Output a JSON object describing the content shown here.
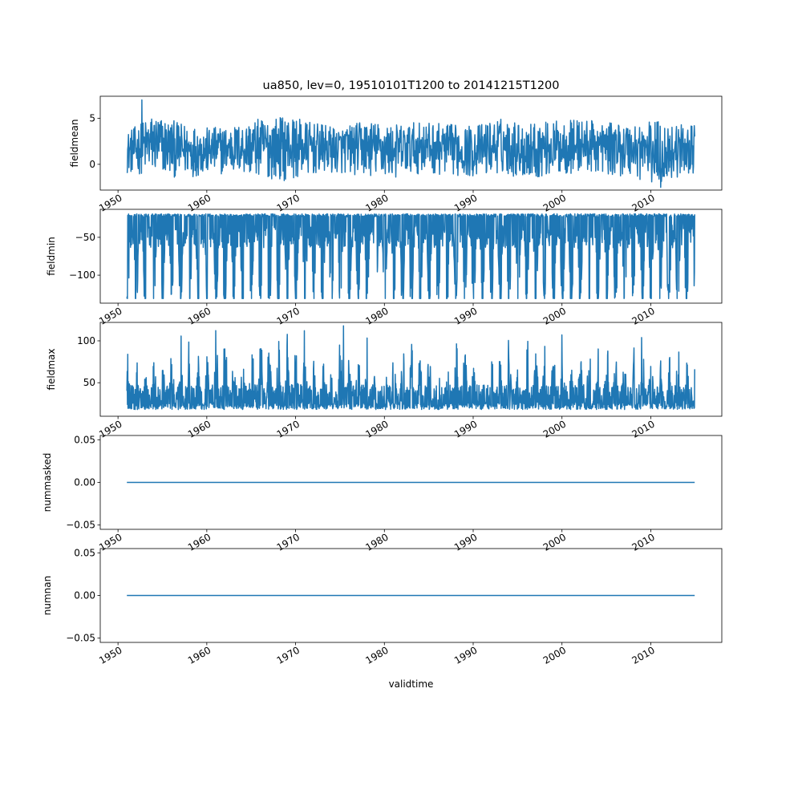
{
  "figure": {
    "title": "ua850, lev=0, 19510101T1200 to 20141215T1200",
    "xlabel": "validtime"
  },
  "chart_data": [
    {
      "type": "line",
      "ylabel": "fieldmean",
      "line_color": "#1f77b4",
      "xlim": [
        1948.0,
        2018.0
      ],
      "ylim": [
        -2.8,
        7.4
      ],
      "yticks": [
        0,
        5
      ],
      "ytick_labels": [
        "0",
        "5"
      ],
      "xticks": [
        1950,
        1960,
        1970,
        1980,
        1990,
        2000,
        2010
      ],
      "xtick_labels": [
        "1950",
        "1960",
        "1970",
        "1980",
        "1990",
        "2000",
        "2010"
      ],
      "x_range": [
        1951.0,
        2014.95
      ],
      "envelope_x": [
        1951,
        1954,
        1957,
        1960,
        1963,
        1966,
        1969,
        1972,
        1975,
        1978,
        1981,
        1984,
        1987,
        1990,
        1993,
        1996,
        1999,
        2002,
        2005,
        2008,
        2011,
        2014
      ],
      "envelope_low": [
        -1.0,
        -1.2,
        -1.5,
        -1.2,
        -1.0,
        -1.5,
        -1.8,
        -1.2,
        -1.0,
        -1.4,
        -1.6,
        -1.0,
        -1.2,
        -1.4,
        -1.0,
        -1.6,
        -1.3,
        -1.0,
        -1.1,
        -1.5,
        -2.5,
        -1.0
      ],
      "envelope_high": [
        3.5,
        5.5,
        4.5,
        4.0,
        4.2,
        5.0,
        5.3,
        4.5,
        4.0,
        4.8,
        4.3,
        4.6,
        4.4,
        4.2,
        5.0,
        4.5,
        4.7,
        5.0,
        4.5,
        4.6,
        4.8,
        4.2
      ],
      "peaks": [
        {
          "x": 1952.7,
          "y": 7.0
        },
        {
          "x": 2011.1,
          "y": -2.5
        }
      ]
    },
    {
      "type": "line",
      "ylabel": "fieldmin",
      "line_color": "#1f77b4",
      "xlim": [
        1948.0,
        2018.0
      ],
      "ylim": [
        -137,
        -13
      ],
      "yticks": [
        -50,
        -100
      ],
      "ytick_labels": [
        "−50",
        "−100"
      ],
      "xticks": [
        1950,
        1960,
        1970,
        1980,
        1990,
        2000,
        2010
      ],
      "xtick_labels": [
        "1950",
        "1960",
        "1970",
        "1980",
        "1990",
        "2000",
        "2010"
      ],
      "x_range": [
        1951.0,
        2014.95
      ],
      "upper_level": -19,
      "lower_level": -131,
      "seasonal_minimum_per_year": "approx. −110 to −131"
    },
    {
      "type": "line",
      "ylabel": "fieldmax",
      "line_color": "#1f77b4",
      "xlim": [
        1948.0,
        2018.0
      ],
      "ylim": [
        10,
        122
      ],
      "yticks": [
        50,
        100
      ],
      "ytick_labels": [
        "50",
        "100"
      ],
      "xticks": [
        1950,
        1960,
        1970,
        1980,
        1990,
        2000,
        2010
      ],
      "xtick_labels": [
        "1950",
        "1960",
        "1970",
        "1980",
        "1990",
        "2000",
        "2010"
      ],
      "x_range": [
        1951.0,
        2014.95
      ],
      "baseline_low": 18,
      "seasonal_maximum_per_year": "approx. 60 to 118",
      "peaks": [
        {
          "x": 1975.4,
          "y": 118
        }
      ]
    },
    {
      "type": "line",
      "ylabel": "nummasked",
      "line_color": "#1f77b4",
      "xlim": [
        1948.0,
        2018.0
      ],
      "ylim": [
        -0.055,
        0.055
      ],
      "yticks": [
        0.05,
        0.0,
        -0.05
      ],
      "ytick_labels": [
        "0.05",
        "0.00",
        "−0.05"
      ],
      "xticks": [
        1950,
        1960,
        1970,
        1980,
        1990,
        2000,
        2010
      ],
      "xtick_labels": [
        "1950",
        "1960",
        "1970",
        "1980",
        "1990",
        "2000",
        "2010"
      ],
      "x": [
        1951.0,
        2014.95
      ],
      "y": [
        0,
        0
      ]
    },
    {
      "type": "line",
      "ylabel": "numnan",
      "line_color": "#1f77b4",
      "xlim": [
        1948.0,
        2018.0
      ],
      "ylim": [
        -0.055,
        0.055
      ],
      "yticks": [
        0.05,
        0.0,
        -0.05
      ],
      "ytick_labels": [
        "0.05",
        "0.00",
        "−0.05"
      ],
      "xticks": [
        1950,
        1960,
        1970,
        1980,
        1990,
        2000,
        2010
      ],
      "xtick_labels": [
        "1950",
        "1960",
        "1970",
        "1980",
        "1990",
        "2000",
        "2010"
      ],
      "x": [
        1951.0,
        2014.95
      ],
      "y": [
        0,
        0
      ]
    }
  ]
}
